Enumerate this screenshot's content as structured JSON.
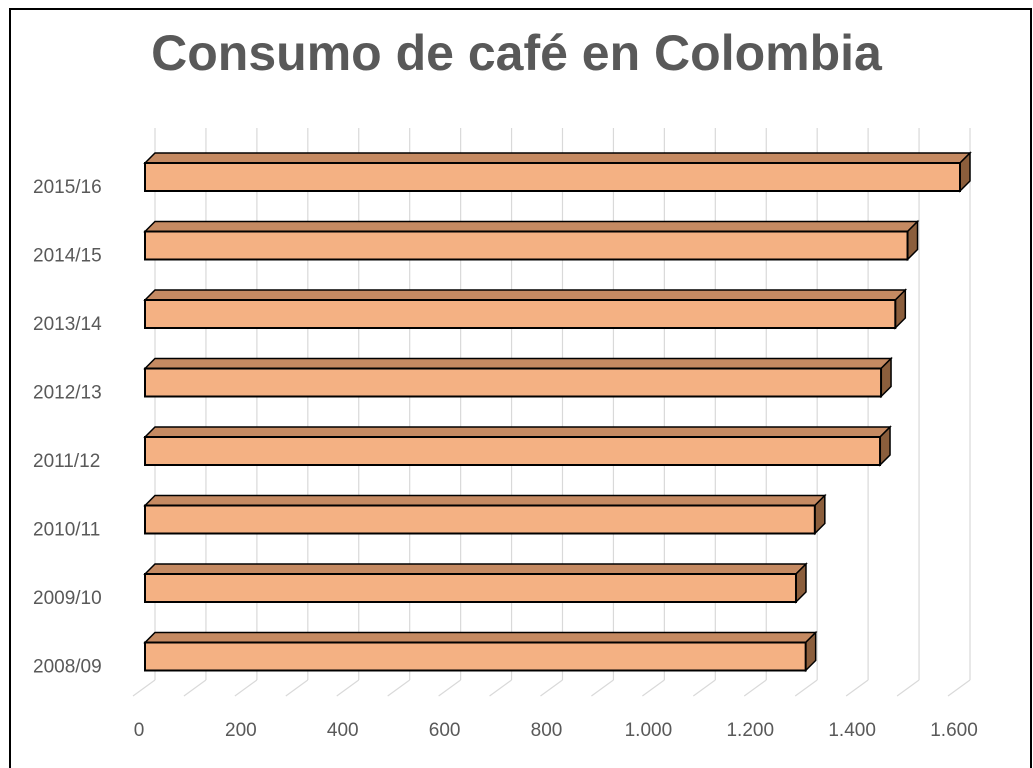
{
  "chart_data": {
    "type": "bar",
    "orientation": "horizontal",
    "title": "Consumo de café en Colombia",
    "categories": [
      "2015/16",
      "2014/15",
      "2013/14",
      "2012/13",
      "2011/12",
      "2010/11",
      "2009/10",
      "2008/09"
    ],
    "values": [
      1600,
      1497,
      1473,
      1445,
      1443,
      1315,
      1278,
      1297
    ],
    "xlim": [
      0,
      1600
    ],
    "x_ticks": [
      "0",
      "200",
      "400",
      "600",
      "800",
      "1.000",
      "1.200",
      "1.400",
      "1.600"
    ],
    "grid": true,
    "style": "3d",
    "colors": {
      "bar_front": "#F4B183",
      "bar_top": "#C58A62",
      "bar_side": "#8B5E3C",
      "outline": "#000000",
      "grid": "#D9D9D9",
      "text": "#595959"
    }
  }
}
